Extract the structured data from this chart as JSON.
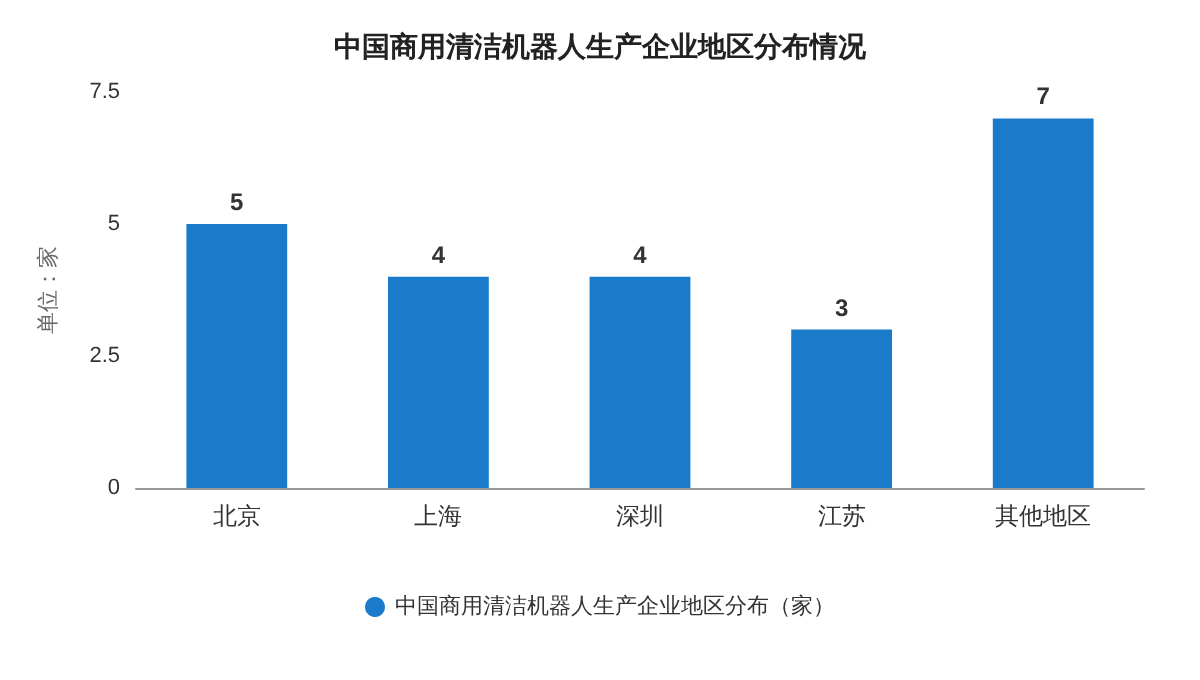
{
  "chart_data": {
    "type": "bar",
    "title": "中国商用清洁机器人生产企业地区分布情况",
    "ylabel": "单位：家",
    "categories": [
      "北京",
      "上海",
      "深圳",
      "江苏",
      "其他地区"
    ],
    "series": [
      {
        "name": "中国商用清洁机器人生产企业地区分布（家）",
        "color": "#1a7bcb",
        "values": [
          5,
          4,
          4,
          3,
          7
        ]
      }
    ],
    "ylim": [
      0,
      7.5
    ],
    "yticks": [
      0,
      2.5,
      5,
      7.5
    ],
    "data_labels": true,
    "legend": "bottom"
  }
}
